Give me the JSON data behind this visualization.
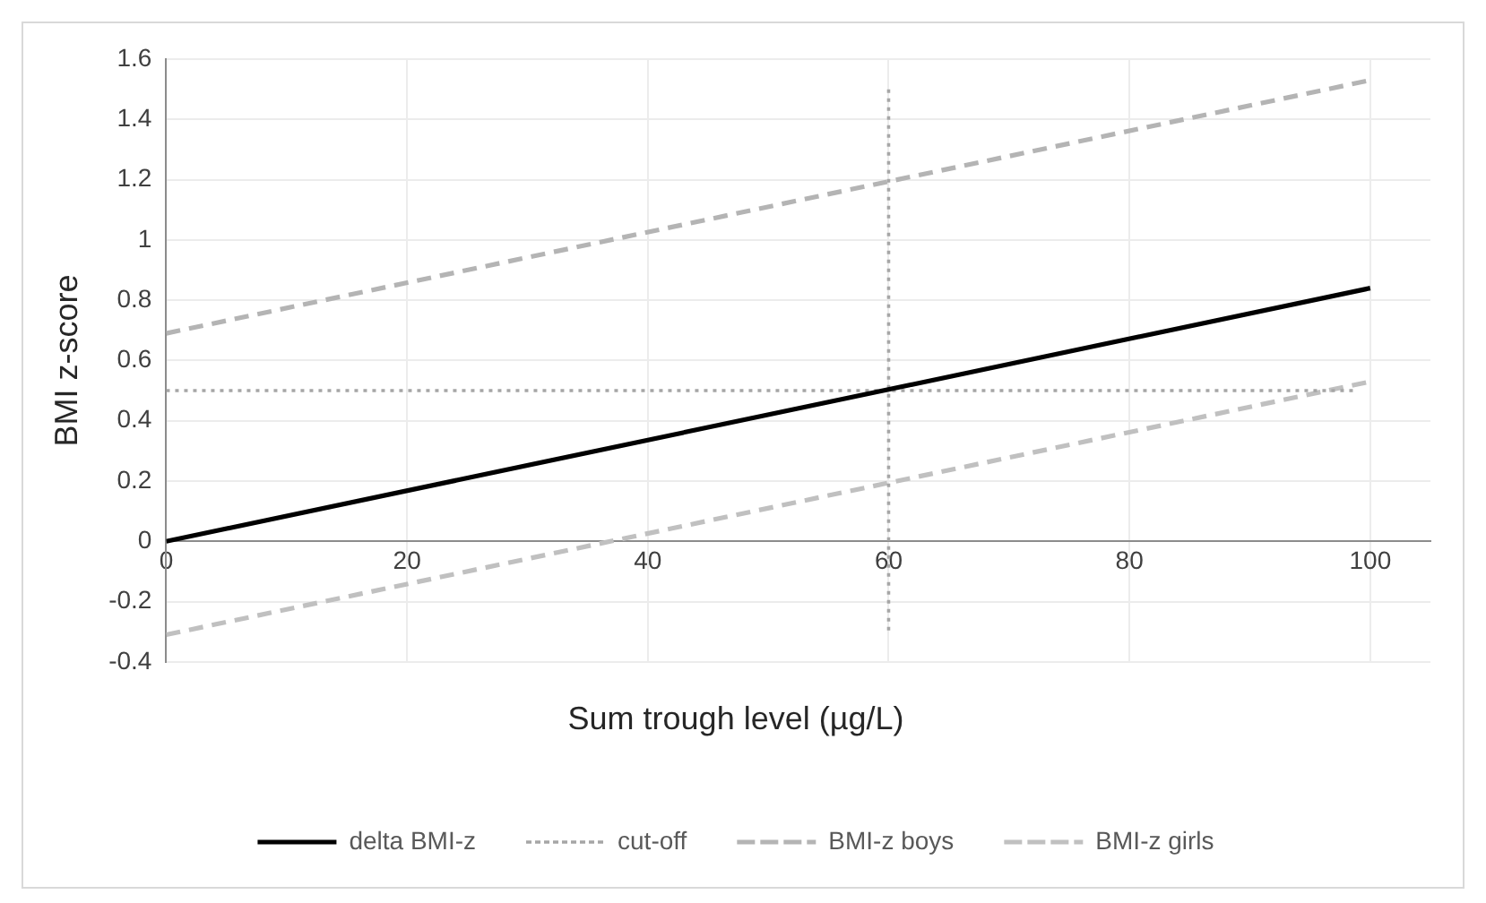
{
  "chart_data": {
    "type": "line",
    "xlabel": "Sum trough level (µg/L)",
    "ylabel": "BMI z-score",
    "xlim": [
      0,
      105
    ],
    "xticks": [
      0,
      20,
      40,
      60,
      80,
      100
    ],
    "ylim": [
      -0.4,
      1.6
    ],
    "yticks": [
      -0.4,
      -0.2,
      0,
      0.2,
      0.4,
      0.6,
      0.8,
      1,
      1.2,
      1.4,
      1.6
    ],
    "grid": true,
    "legend": "bottom",
    "marker": "none",
    "series": [
      {
        "name": "delta BMI-z",
        "color": "#000000",
        "line_style": "solid",
        "x": [
          0,
          100
        ],
        "values": [
          0,
          0.84
        ]
      },
      {
        "name": "cut-off",
        "color": "#a6a6a6",
        "line_style": "dotted",
        "x": [
          0,
          99
        ],
        "values": [
          0.5,
          0.5
        ]
      },
      {
        "color": "#a6a6a6",
        "line_style": "dotted",
        "x": [
          60,
          60
        ],
        "values": [
          1.5,
          -0.3
        ]
      },
      {
        "name": "BMI-z boys",
        "color": "#b4b4b4",
        "line_style": "dashed",
        "x": [
          0,
          100
        ],
        "values": [
          0.69,
          1.53
        ]
      },
      {
        "name": "BMI-z girls",
        "color": "#c0c0c0",
        "line_style": "dashed",
        "x": [
          0,
          100
        ],
        "values": [
          -0.31,
          0.53
        ]
      }
    ]
  }
}
